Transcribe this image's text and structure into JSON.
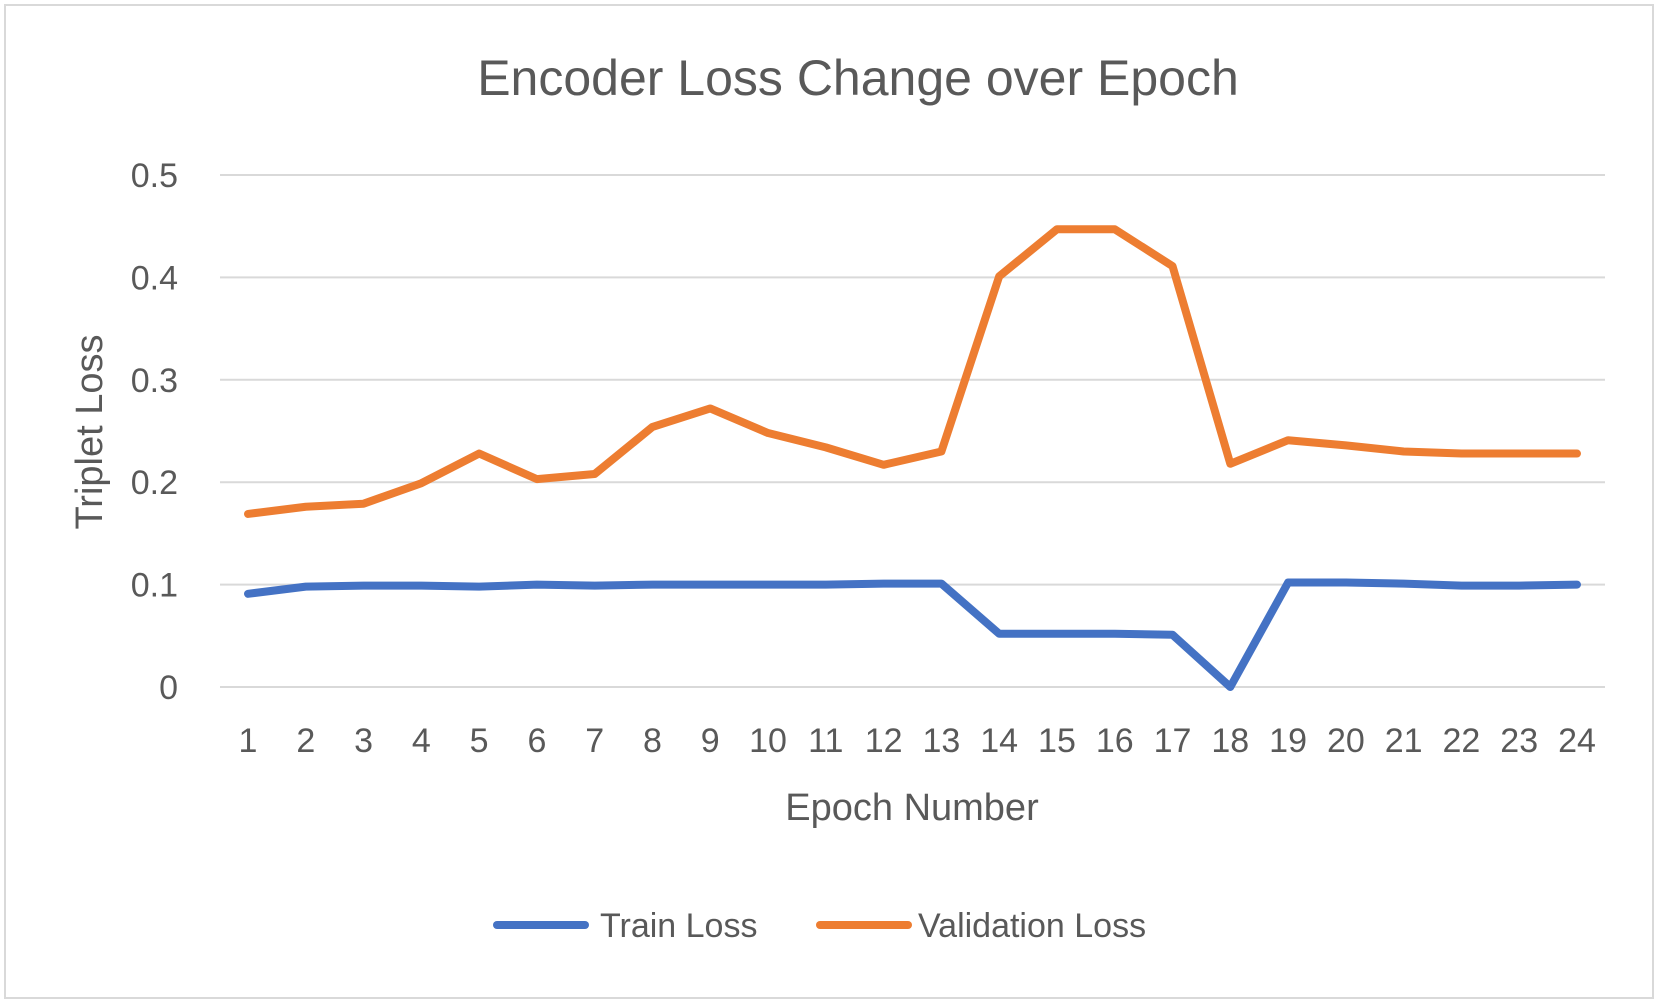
{
  "chart_data": {
    "type": "line",
    "title": "Encoder Loss Change over Epoch",
    "xlabel": "Epoch Number",
    "ylabel": "Triplet Loss",
    "x": [
      "1",
      "2",
      "3",
      "4",
      "5",
      "6",
      "7",
      "8",
      "9",
      "10",
      "11",
      "12",
      "13",
      "14",
      "15",
      "16",
      "17",
      "18",
      "19",
      "20",
      "21",
      "22",
      "23",
      "24"
    ],
    "ylim": [
      0,
      0.5
    ],
    "yticks": [
      "0",
      "0.1",
      "0.2",
      "0.3",
      "0.4",
      "0.5"
    ],
    "grid": true,
    "legend_position": "bottom",
    "series": [
      {
        "name": "Train Loss",
        "color": "#4472C4",
        "values": [
          0.091,
          0.098,
          0.099,
          0.099,
          0.098,
          0.1,
          0.099,
          0.1,
          0.1,
          0.1,
          0.1,
          0.101,
          0.101,
          0.052,
          0.052,
          0.052,
          0.051,
          0.0,
          0.102,
          0.102,
          0.101,
          0.099,
          0.099,
          0.1
        ]
      },
      {
        "name": "Validation Loss",
        "color": "#ED7D31",
        "values": [
          0.169,
          0.176,
          0.179,
          0.199,
          0.228,
          0.203,
          0.208,
          0.254,
          0.272,
          0.248,
          0.234,
          0.217,
          0.23,
          0.401,
          0.447,
          0.447,
          0.411,
          0.218,
          0.241,
          0.236,
          0.23,
          0.228,
          0.228,
          0.228
        ]
      }
    ]
  }
}
